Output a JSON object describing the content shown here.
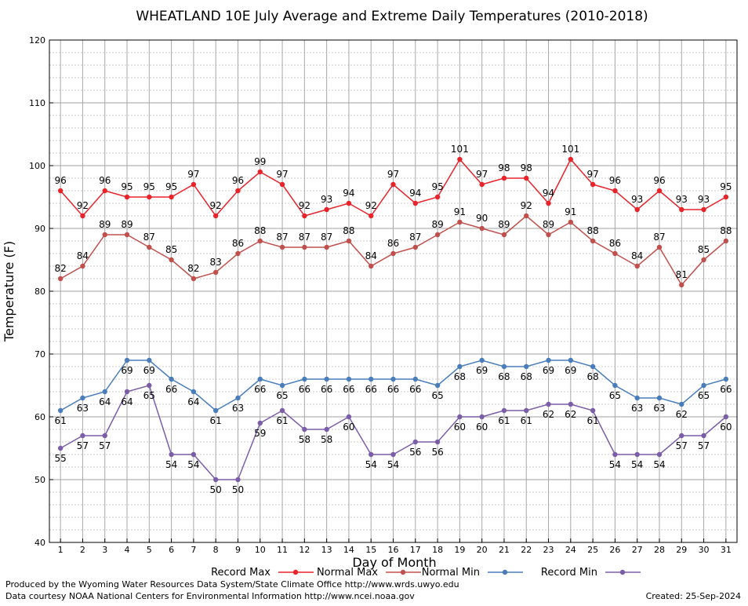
{
  "chart_data": {
    "type": "line",
    "title": "WHEATLAND 10E July Average and Extreme Daily Temperatures (2010-2018)",
    "xlabel": "Day of Month",
    "ylabel": "Temperature (F)",
    "ylim": [
      40,
      120
    ],
    "xlim": [
      0.5,
      31.5
    ],
    "yticks": [
      "40",
      "50",
      "60",
      "70",
      "80",
      "90",
      "100",
      "110",
      "120"
    ],
    "categories": [
      "1",
      "2",
      "3",
      "4",
      "5",
      "6",
      "7",
      "8",
      "9",
      "10",
      "11",
      "12",
      "13",
      "14",
      "15",
      "16",
      "17",
      "18",
      "19",
      "20",
      "21",
      "22",
      "23",
      "24",
      "25",
      "26",
      "27",
      "28",
      "29",
      "30",
      "31"
    ],
    "grid": true,
    "legend_position": "bottom",
    "series": [
      {
        "name": "Record Max",
        "color": "#e8232a",
        "values": [
          96,
          92,
          96,
          95,
          95,
          95,
          97,
          92,
          96,
          99,
          97,
          92,
          93,
          94,
          92,
          97,
          94,
          95,
          101,
          97,
          98,
          98,
          94,
          101,
          97,
          96,
          93,
          96,
          93,
          93,
          95
        ]
      },
      {
        "name": "Normal Max",
        "color": "#c0504d",
        "values": [
          82,
          84,
          89,
          89,
          87,
          85,
          82,
          83,
          86,
          88,
          87,
          87,
          87,
          88,
          84,
          86,
          87,
          89,
          91,
          90,
          89,
          92,
          89,
          91,
          88,
          86,
          84,
          87,
          81,
          85,
          88
        ]
      },
      {
        "name": "Normal Min",
        "color": "#4a7ebb",
        "values": [
          61,
          63,
          64,
          69,
          69,
          66,
          64,
          61,
          63,
          66,
          65,
          66,
          66,
          66,
          66,
          66,
          66,
          65,
          68,
          69,
          68,
          68,
          69,
          69,
          68,
          65,
          63,
          63,
          62,
          65,
          66
        ]
      },
      {
        "name": "Record Min",
        "color": "#7b5ea7",
        "values": [
          55,
          57,
          57,
          64,
          65,
          54,
          54,
          50,
          50,
          59,
          61,
          58,
          58,
          60,
          54,
          54,
          56,
          56,
          60,
          60,
          61,
          61,
          62,
          62,
          61,
          54,
          54,
          54,
          57,
          57,
          60
        ]
      }
    ]
  },
  "footer": {
    "line1": "Produced by the Wyoming Water Resources Data System/State Climate Office http://www.wrds.uwyo.edu",
    "line2": "Data courtesy NOAA National Centers for Environmental Information http://www.ncei.noaa.gov",
    "created": "Created:  25-Sep-2024"
  }
}
